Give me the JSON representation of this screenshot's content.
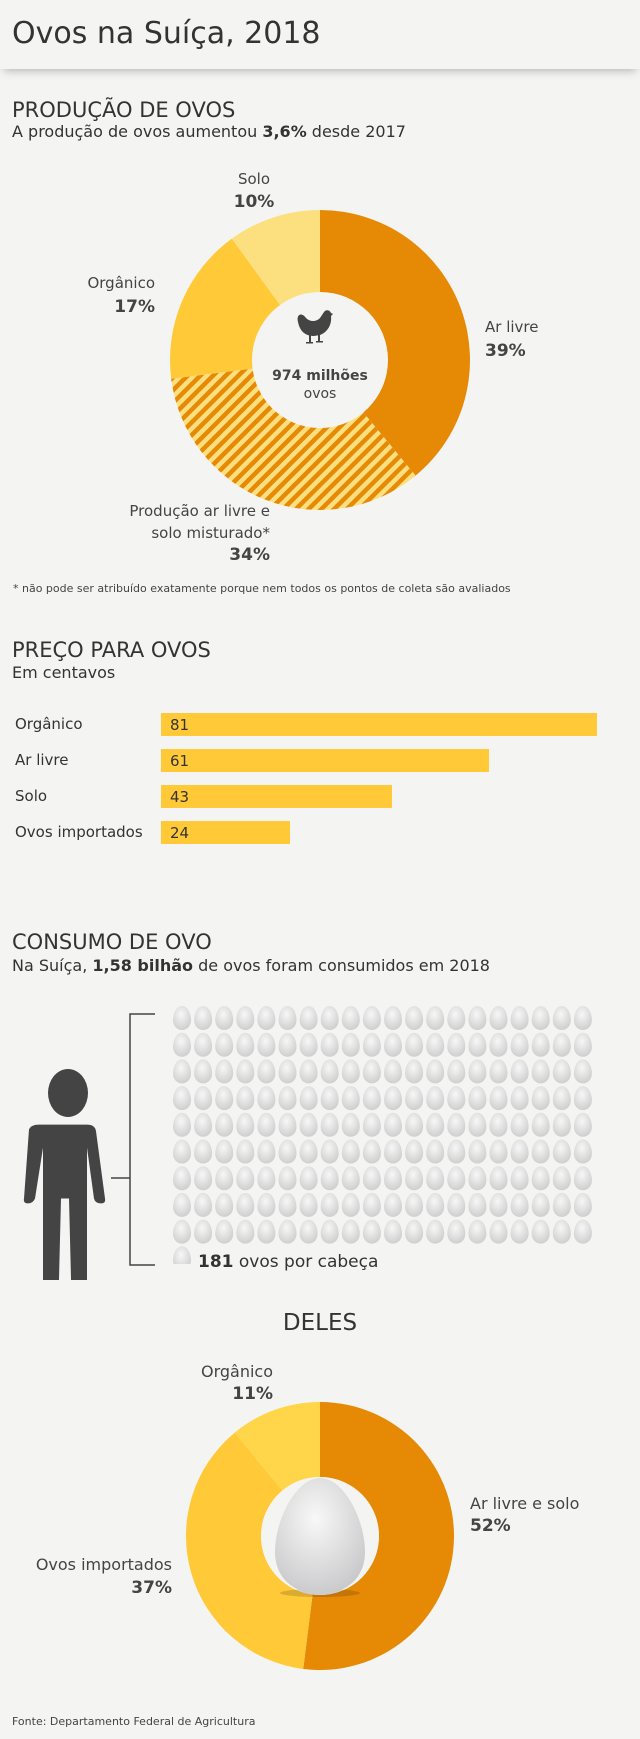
{
  "title": "Ovos na Suíça, 2018",
  "production": {
    "heading": "PRODUÇÃO DE OVOS",
    "subtitle_pre": "A produção de ovos aumentou ",
    "subtitle_bold": "3,6%",
    "subtitle_post": " desde 2017",
    "center_value": "974 milhões",
    "center_unit": "ovos",
    "footnote": "* não pode ser atribuído exatamente porque nem todos os pontos de coleta são avaliados"
  },
  "price": {
    "heading": "PREÇO PARA OVOS",
    "subtitle": "Em centavos"
  },
  "consumption": {
    "heading": "CONSUMO DE OVO",
    "subtitle_pre": "Na Suíça, ",
    "subtitle_bold": "1,58 bilhão",
    "subtitle_post": " de ovos foram consumidos em 2018",
    "per_head_bold": "181",
    "per_head_text": " ovos por cabeça",
    "eggs_per_head": 181,
    "deles": "DELES"
  },
  "source": "Fonte: Departamento Federal de Agricultura",
  "chart_data": [
    {
      "type": "pie",
      "title": "PRODUÇÃO DE OVOS",
      "slices": [
        {
          "label": "Ar livre",
          "value": 39,
          "pct": "39%",
          "color": "#e68a06"
        },
        {
          "label_lines": [
            "Produção ar livre e",
            "solo misturado*"
          ],
          "value": 34,
          "pct": "34%",
          "color": "hatched"
        },
        {
          "label": "Orgânico",
          "value": 17,
          "pct": "17%",
          "color": "#ffc938"
        },
        {
          "label": "Solo",
          "value": 10,
          "pct": "10%",
          "color": "#fce07f"
        }
      ]
    },
    {
      "type": "bar",
      "title": "PREÇO PARA OVOS",
      "ylabel": "Em centavos",
      "categories": [
        "Orgânico",
        "Ar livre",
        "Solo",
        "Ovos importados"
      ],
      "values": [
        81,
        61,
        43,
        24
      ],
      "xlim": [
        0,
        81
      ]
    },
    {
      "type": "pie",
      "title": "DELES",
      "slices": [
        {
          "label": "Ar livre e solo",
          "value": 52,
          "pct": "52%",
          "color": "#e68a06"
        },
        {
          "label": "Ovos importados",
          "value": 37,
          "pct": "37%",
          "color": "#ffc938"
        },
        {
          "label": "Orgânico",
          "value": 11,
          "pct": "11%",
          "color": "#ffd54a"
        }
      ]
    }
  ]
}
